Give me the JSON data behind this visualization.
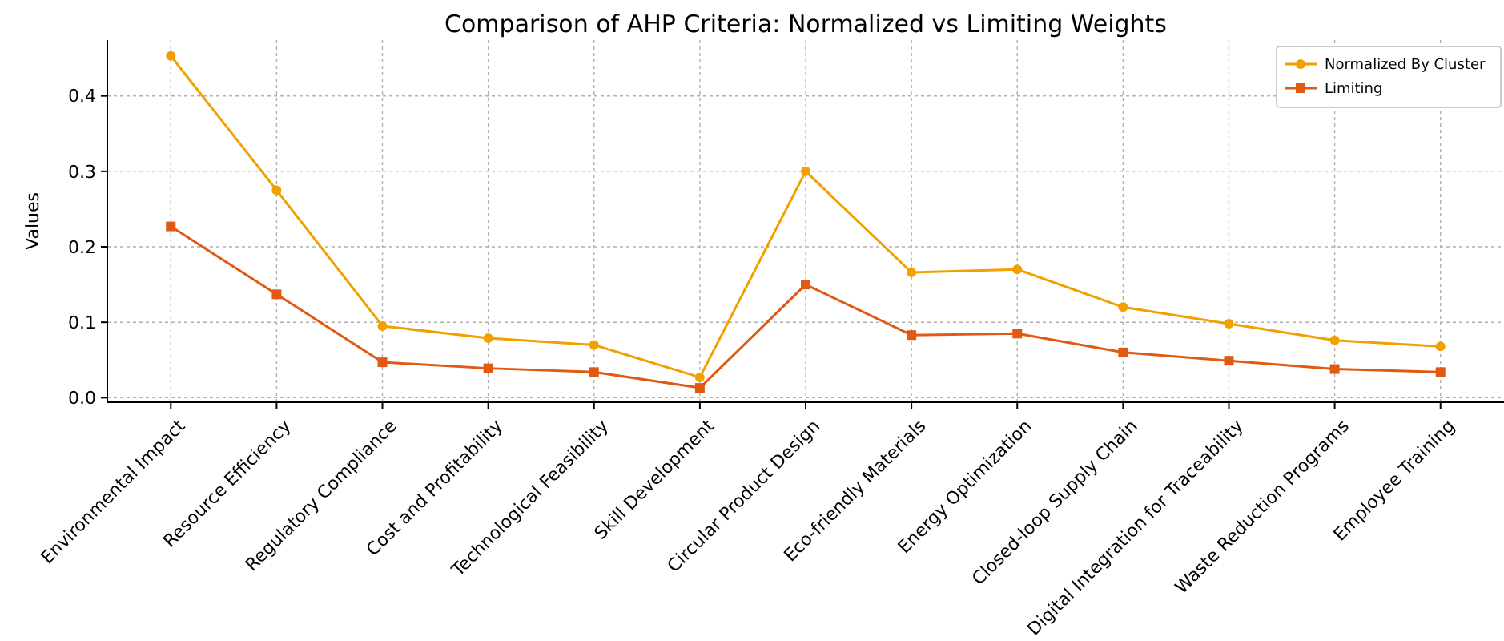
{
  "chart_data": {
    "type": "line",
    "title": "Comparison of AHP Criteria: Normalized vs Limiting Weights",
    "ylabel": "Values",
    "categories": [
      "Environmental Impact",
      "Resource Efficiency",
      "Regulatory Compliance",
      "Cost and Profitability",
      "Technological Feasibility",
      "Skill Development",
      "Circular Product Design",
      "Eco-friendly Materials",
      "Energy Optimization",
      "Closed-loop Supply Chain",
      "Digital Integration for Traceability",
      "Waste Reduction Programs",
      "Employee Training"
    ],
    "series": [
      {
        "name": "Normalized By Cluster",
        "color": "#f0a000",
        "marker": "circle",
        "values": [
          0.453,
          0.275,
          0.095,
          0.079,
          0.07,
          0.027,
          0.3,
          0.166,
          0.17,
          0.12,
          0.098,
          0.076,
          0.068
        ]
      },
      {
        "name": "Limiting",
        "color": "#e05a14",
        "marker": "square",
        "values": [
          0.227,
          0.137,
          0.047,
          0.039,
          0.034,
          0.013,
          0.15,
          0.083,
          0.085,
          0.06,
          0.049,
          0.038,
          0.034
        ]
      }
    ],
    "ylim": [
      -0.006,
      0.474
    ],
    "yticks": [
      {
        "value": 0,
        "label": "0.0"
      },
      0.1,
      0.2,
      0.3,
      0.4
    ],
    "grid": true,
    "legend": "top right",
    "line_style": "solid"
  }
}
